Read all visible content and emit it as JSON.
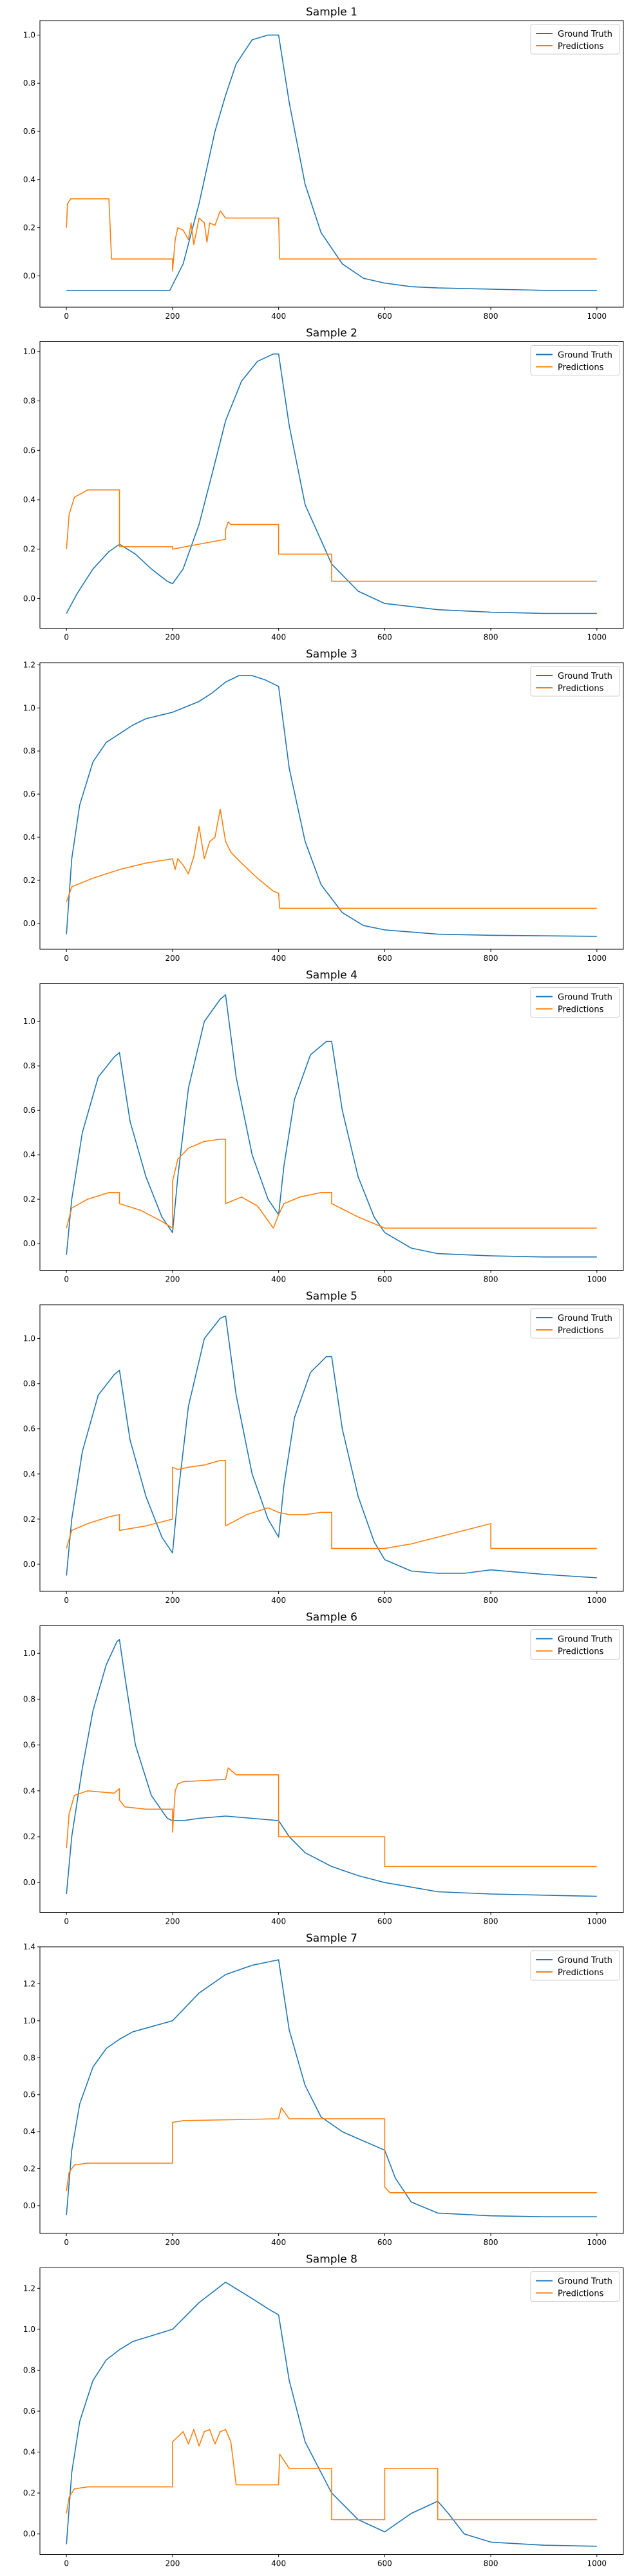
{
  "colors": {
    "ground_truth": "#1f77b4",
    "predictions": "#ff7f0e"
  },
  "chart_data": [
    {
      "type": "line",
      "title": "Sample 1",
      "xlim": [
        -50,
        1050
      ],
      "ylim": [
        -0.13,
        1.06
      ],
      "xticks": [
        0,
        200,
        400,
        600,
        800,
        1000
      ],
      "yticks": [
        0.0,
        0.2,
        0.4,
        0.6,
        0.8,
        1.0
      ],
      "grid": false,
      "legend_position": "top-right",
      "series": [
        {
          "name": "Ground Truth",
          "x": [
            0,
            195,
            220,
            250,
            280,
            300,
            320,
            350,
            380,
            400,
            420,
            450,
            480,
            520,
            560,
            600,
            650,
            700,
            800,
            900,
            1000
          ],
          "y": [
            -0.06,
            -0.06,
            0.05,
            0.3,
            0.6,
            0.75,
            0.88,
            0.98,
            1.0,
            1.0,
            0.72,
            0.38,
            0.18,
            0.05,
            -0.01,
            -0.03,
            -0.045,
            -0.05,
            -0.055,
            -0.06,
            -0.06
          ]
        },
        {
          "name": "Predictions",
          "x": [
            0,
            2,
            8,
            80,
            85,
            200,
            200,
            205,
            210,
            220,
            230,
            235,
            240,
            250,
            260,
            265,
            270,
            280,
            290,
            300,
            310,
            320,
            400,
            402,
            1000
          ],
          "y": [
            0.2,
            0.3,
            0.32,
            0.32,
            0.07,
            0.07,
            0.02,
            0.15,
            0.2,
            0.19,
            0.15,
            0.22,
            0.13,
            0.24,
            0.22,
            0.14,
            0.22,
            0.21,
            0.27,
            0.24,
            0.24,
            0.24,
            0.24,
            0.07,
            0.07
          ]
        }
      ]
    },
    {
      "type": "line",
      "title": "Sample 2",
      "xlim": [
        -50,
        1050
      ],
      "ylim": [
        -0.12,
        1.04
      ],
      "xticks": [
        0,
        200,
        400,
        600,
        800,
        1000
      ],
      "yticks": [
        0.0,
        0.2,
        0.4,
        0.6,
        0.8,
        1.0
      ],
      "grid": false,
      "legend_position": "top-right",
      "series": [
        {
          "name": "Ground Truth",
          "x": [
            0,
            20,
            50,
            80,
            100,
            130,
            160,
            190,
            200,
            220,
            250,
            280,
            300,
            330,
            360,
            390,
            400,
            420,
            450,
            500,
            550,
            600,
            700,
            800,
            900,
            1000
          ],
          "y": [
            -0.06,
            0.02,
            0.12,
            0.19,
            0.22,
            0.18,
            0.12,
            0.07,
            0.06,
            0.12,
            0.3,
            0.55,
            0.72,
            0.88,
            0.96,
            0.99,
            0.99,
            0.7,
            0.38,
            0.14,
            0.03,
            -0.02,
            -0.045,
            -0.055,
            -0.06,
            -0.06
          ]
        },
        {
          "name": "Predictions",
          "x": [
            0,
            5,
            15,
            40,
            60,
            100,
            100,
            200,
            200,
            300,
            300,
            305,
            310,
            400,
            400,
            500,
            500,
            1000
          ],
          "y": [
            0.2,
            0.34,
            0.41,
            0.44,
            0.44,
            0.44,
            0.21,
            0.21,
            0.2,
            0.24,
            0.28,
            0.31,
            0.3,
            0.3,
            0.18,
            0.18,
            0.07,
            0.07
          ]
        }
      ]
    },
    {
      "type": "line",
      "title": "Sample 3",
      "xlim": [
        -50,
        1050
      ],
      "ylim": [
        -0.12,
        1.21
      ],
      "xticks": [
        0,
        200,
        400,
        600,
        800,
        1000
      ],
      "yticks": [
        0.0,
        0.2,
        0.4,
        0.6,
        0.8,
        1.0,
        1.2
      ],
      "grid": false,
      "legend_position": "top-right",
      "series": [
        {
          "name": "Ground Truth",
          "x": [
            0,
            10,
            25,
            50,
            75,
            100,
            125,
            150,
            200,
            250,
            275,
            300,
            325,
            350,
            375,
            400,
            420,
            450,
            480,
            520,
            560,
            600,
            700,
            800,
            1000
          ],
          "y": [
            -0.05,
            0.3,
            0.55,
            0.75,
            0.84,
            0.88,
            0.92,
            0.95,
            0.98,
            1.03,
            1.07,
            1.12,
            1.15,
            1.15,
            1.13,
            1.1,
            0.72,
            0.38,
            0.18,
            0.05,
            -0.01,
            -0.03,
            -0.05,
            -0.055,
            -0.06
          ]
        },
        {
          "name": "Predictions",
          "x": [
            0,
            10,
            50,
            100,
            150,
            200,
            205,
            210,
            220,
            230,
            240,
            250,
            260,
            270,
            280,
            290,
            300,
            310,
            330,
            360,
            390,
            400,
            402,
            1000
          ],
          "y": [
            0.1,
            0.17,
            0.21,
            0.25,
            0.28,
            0.3,
            0.25,
            0.3,
            0.27,
            0.23,
            0.31,
            0.45,
            0.3,
            0.38,
            0.4,
            0.53,
            0.38,
            0.33,
            0.28,
            0.21,
            0.15,
            0.14,
            0.07,
            0.07
          ]
        }
      ]
    },
    {
      "type": "line",
      "title": "Sample 4",
      "xlim": [
        -50,
        1050
      ],
      "ylim": [
        -0.12,
        1.17
      ],
      "xticks": [
        0,
        200,
        400,
        600,
        800,
        1000
      ],
      "yticks": [
        0.0,
        0.2,
        0.4,
        0.6,
        0.8,
        1.0
      ],
      "grid": false,
      "legend_position": "top-right",
      "series": [
        {
          "name": "Ground Truth",
          "x": [
            0,
            10,
            30,
            60,
            90,
            100,
            120,
            150,
            180,
            200,
            210,
            230,
            260,
            290,
            300,
            320,
            350,
            380,
            400,
            410,
            430,
            460,
            490,
            500,
            520,
            550,
            580,
            600,
            650,
            700,
            800,
            900,
            1000
          ],
          "y": [
            -0.05,
            0.2,
            0.5,
            0.75,
            0.84,
            0.86,
            0.55,
            0.3,
            0.12,
            0.05,
            0.3,
            0.7,
            1.0,
            1.1,
            1.12,
            0.75,
            0.4,
            0.2,
            0.13,
            0.35,
            0.65,
            0.85,
            0.91,
            0.91,
            0.6,
            0.3,
            0.12,
            0.05,
            -0.02,
            -0.045,
            -0.055,
            -0.06,
            -0.06
          ]
        },
        {
          "name": "Predictions",
          "x": [
            0,
            10,
            40,
            80,
            100,
            100,
            140,
            180,
            200,
            200,
            210,
            230,
            260,
            290,
            300,
            300,
            330,
            360,
            390,
            400,
            410,
            440,
            480,
            500,
            500,
            550,
            600,
            1000
          ],
          "y": [
            0.07,
            0.16,
            0.2,
            0.23,
            0.23,
            0.18,
            0.15,
            0.1,
            0.07,
            0.28,
            0.38,
            0.43,
            0.46,
            0.47,
            0.47,
            0.18,
            0.21,
            0.17,
            0.07,
            0.13,
            0.18,
            0.21,
            0.23,
            0.23,
            0.18,
            0.12,
            0.07,
            0.07
          ]
        }
      ]
    },
    {
      "type": "line",
      "title": "Sample 5",
      "xlim": [
        -50,
        1050
      ],
      "ylim": [
        -0.12,
        1.15
      ],
      "xticks": [
        0,
        200,
        400,
        600,
        800,
        1000
      ],
      "yticks": [
        0.0,
        0.2,
        0.4,
        0.6,
        0.8,
        1.0
      ],
      "grid": false,
      "legend_position": "top-right",
      "series": [
        {
          "name": "Ground Truth",
          "x": [
            0,
            10,
            30,
            60,
            90,
            100,
            120,
            150,
            180,
            200,
            210,
            230,
            260,
            290,
            300,
            320,
            350,
            380,
            400,
            410,
            430,
            460,
            490,
            500,
            520,
            550,
            580,
            600,
            650,
            700,
            750,
            800,
            850,
            900,
            1000
          ],
          "y": [
            -0.05,
            0.2,
            0.5,
            0.75,
            0.84,
            0.86,
            0.55,
            0.3,
            0.12,
            0.05,
            0.3,
            0.7,
            1.0,
            1.09,
            1.1,
            0.75,
            0.4,
            0.2,
            0.12,
            0.35,
            0.65,
            0.85,
            0.92,
            0.92,
            0.6,
            0.3,
            0.1,
            0.02,
            -0.03,
            -0.04,
            -0.04,
            -0.025,
            -0.035,
            -0.045,
            -0.06
          ]
        },
        {
          "name": "Predictions",
          "x": [
            0,
            10,
            40,
            80,
            100,
            100,
            150,
            200,
            200,
            210,
            230,
            260,
            290,
            300,
            300,
            340,
            380,
            400,
            420,
            450,
            480,
            500,
            500,
            600,
            650,
            700,
            750,
            800,
            800,
            1000
          ],
          "y": [
            0.07,
            0.15,
            0.18,
            0.21,
            0.22,
            0.15,
            0.17,
            0.2,
            0.43,
            0.42,
            0.43,
            0.44,
            0.46,
            0.46,
            0.17,
            0.22,
            0.25,
            0.23,
            0.22,
            0.22,
            0.23,
            0.23,
            0.07,
            0.07,
            0.09,
            0.12,
            0.15,
            0.18,
            0.07,
            0.07
          ]
        }
      ]
    },
    {
      "type": "line",
      "title": "Sample 6",
      "xlim": [
        -50,
        1050
      ],
      "ylim": [
        -0.13,
        1.12
      ],
      "xticks": [
        0,
        200,
        400,
        600,
        800,
        1000
      ],
      "yticks": [
        0.0,
        0.2,
        0.4,
        0.6,
        0.8,
        1.0
      ],
      "grid": false,
      "legend_position": "top-right",
      "series": [
        {
          "name": "Ground Truth",
          "x": [
            0,
            10,
            30,
            50,
            75,
            95,
            100,
            110,
            130,
            160,
            190,
            200,
            220,
            250,
            300,
            350,
            400,
            420,
            450,
            500,
            550,
            600,
            650,
            700,
            800,
            900,
            1000
          ],
          "y": [
            -0.05,
            0.2,
            0.5,
            0.75,
            0.95,
            1.05,
            1.06,
            0.9,
            0.6,
            0.38,
            0.28,
            0.27,
            0.27,
            0.28,
            0.29,
            0.28,
            0.27,
            0.2,
            0.13,
            0.07,
            0.03,
            0.0,
            -0.02,
            -0.04,
            -0.05,
            -0.055,
            -0.06
          ]
        },
        {
          "name": "Predictions",
          "x": [
            0,
            5,
            15,
            40,
            90,
            100,
            100,
            110,
            150,
            200,
            200,
            205,
            210,
            220,
            300,
            305,
            320,
            400,
            400,
            600,
            600,
            1000
          ],
          "y": [
            0.15,
            0.3,
            0.38,
            0.4,
            0.39,
            0.41,
            0.36,
            0.33,
            0.32,
            0.32,
            0.22,
            0.4,
            0.43,
            0.44,
            0.45,
            0.5,
            0.47,
            0.47,
            0.2,
            0.2,
            0.07,
            0.07
          ]
        }
      ]
    },
    {
      "type": "line",
      "title": "Sample 7",
      "xlim": [
        -50,
        1050
      ],
      "ylim": [
        -0.15,
        1.4
      ],
      "xticks": [
        0,
        200,
        400,
        600,
        800,
        1000
      ],
      "yticks": [
        0.0,
        0.2,
        0.4,
        0.6,
        0.8,
        1.0,
        1.2,
        1.4
      ],
      "grid": false,
      "legend_position": "top-right",
      "series": [
        {
          "name": "Ground Truth",
          "x": [
            0,
            10,
            25,
            50,
            75,
            100,
            125,
            150,
            200,
            250,
            300,
            350,
            400,
            420,
            450,
            480,
            520,
            560,
            600,
            620,
            650,
            700,
            800,
            900,
            1000
          ],
          "y": [
            -0.05,
            0.3,
            0.55,
            0.75,
            0.85,
            0.9,
            0.94,
            0.96,
            1.0,
            1.15,
            1.25,
            1.3,
            1.33,
            0.95,
            0.65,
            0.48,
            0.4,
            0.35,
            0.3,
            0.15,
            0.02,
            -0.04,
            -0.055,
            -0.06,
            -0.06
          ]
        },
        {
          "name": "Predictions",
          "x": [
            0,
            5,
            15,
            40,
            200,
            200,
            220,
            400,
            405,
            420,
            600,
            600,
            610,
            1000
          ],
          "y": [
            0.08,
            0.18,
            0.22,
            0.23,
            0.23,
            0.45,
            0.46,
            0.47,
            0.53,
            0.47,
            0.47,
            0.1,
            0.07,
            0.07
          ]
        }
      ]
    },
    {
      "type": "line",
      "title": "Sample 8",
      "xlim": [
        -50,
        1050
      ],
      "ylim": [
        -0.1,
        1.3
      ],
      "xticks": [
        0,
        200,
        400,
        600,
        800,
        1000
      ],
      "yticks": [
        0.0,
        0.2,
        0.4,
        0.6,
        0.8,
        1.0,
        1.2
      ],
      "grid": false,
      "legend_position": "top-right",
      "series": [
        {
          "name": "Ground Truth",
          "x": [
            0,
            10,
            25,
            50,
            75,
            100,
            125,
            150,
            200,
            250,
            300,
            350,
            380,
            400,
            420,
            450,
            480,
            500,
            550,
            600,
            650,
            700,
            720,
            750,
            800,
            900,
            1000
          ],
          "y": [
            -0.05,
            0.3,
            0.55,
            0.75,
            0.85,
            0.9,
            0.94,
            0.96,
            1.0,
            1.13,
            1.23,
            1.15,
            1.1,
            1.07,
            0.75,
            0.45,
            0.3,
            0.2,
            0.07,
            0.01,
            0.1,
            0.16,
            0.1,
            0.0,
            -0.04,
            -0.055,
            -0.06
          ]
        },
        {
          "name": "Predictions",
          "x": [
            0,
            5,
            15,
            40,
            200,
            200,
            220,
            230,
            240,
            250,
            260,
            270,
            280,
            290,
            300,
            310,
            320,
            400,
            402,
            420,
            500,
            500,
            600,
            600,
            700,
            700,
            1000
          ],
          "y": [
            0.1,
            0.18,
            0.22,
            0.23,
            0.23,
            0.45,
            0.5,
            0.44,
            0.51,
            0.43,
            0.5,
            0.51,
            0.44,
            0.5,
            0.51,
            0.45,
            0.24,
            0.24,
            0.39,
            0.32,
            0.32,
            0.07,
            0.07,
            0.32,
            0.32,
            0.07,
            0.07
          ]
        }
      ]
    }
  ]
}
